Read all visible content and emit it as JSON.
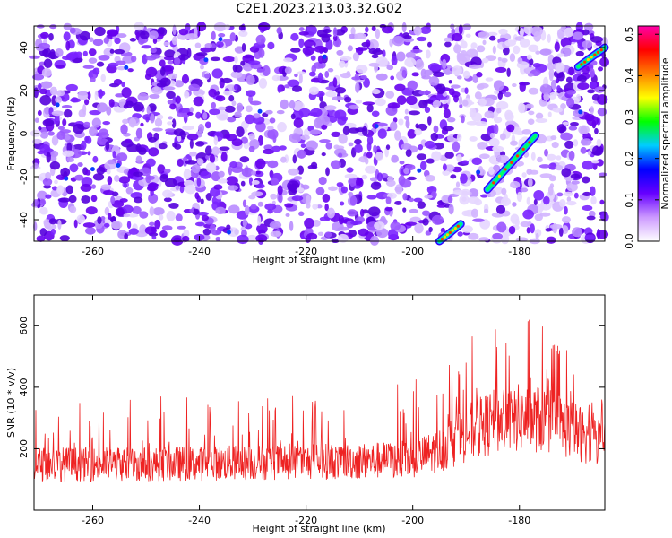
{
  "title": "C2E1.2023.213.03.32.G02",
  "chart_data": [
    {
      "type": "heatmap",
      "xlabel": "Height of straight line (km)",
      "ylabel": "Frequency (Hz)",
      "xlim": [
        -271,
        -164
      ],
      "ylim": [
        -50,
        50
      ],
      "x_ticks": [
        -260,
        -240,
        -220,
        -200,
        -180
      ],
      "y_ticks": [
        -40,
        -20,
        0,
        20,
        40
      ],
      "colorbar": {
        "label": "Normalized spectral amplitude",
        "range": [
          0,
          0.52
        ],
        "ticks": [
          0.0,
          0.1,
          0.2,
          0.3,
          0.4,
          0.5
        ],
        "colors": [
          "#ffffff",
          "#cc99ff",
          "#6600ff",
          "#0000ff",
          "#00ccff",
          "#00ff00",
          "#ffff00",
          "#ff8000",
          "#ff0000",
          "#ff00aa"
        ]
      },
      "features": [
        {
          "name": "",
          "x": [
            -195,
            -191
          ],
          "y": [
            -50,
            -42
          ]
        },
        {
          "name": "",
          "x": [
            -186,
            -177
          ],
          "y": [
            -26,
            -1
          ]
        },
        {
          "name": "",
          "x": [
            -169,
            -164
          ],
          "y": [
            31,
            40
          ]
        }
      ]
    },
    {
      "type": "line",
      "xlabel": "Height of straight line (km)",
      "ylabel": "SNR (10 * v/v)",
      "xlim": [
        -271,
        -164
      ],
      "ylim": [
        0,
        700
      ],
      "x_ticks": [
        -260,
        -240,
        -220,
        -200,
        -180
      ],
      "y_ticks": [
        200,
        400,
        600
      ],
      "color": "#ee2222",
      "profile": {
        "x": [
          -271,
          -250,
          -230,
          -210,
          -200,
          -195,
          -190,
          -185,
          -180,
          -175,
          -170,
          -166,
          -164
        ],
        "baseline": [
          150,
          150,
          155,
          160,
          165,
          195,
          250,
          285,
          300,
          295,
          260,
          230,
          230
        ],
        "peak": [
          330,
          380,
          380,
          400,
          420,
          470,
          560,
          600,
          640,
          600,
          520,
          430,
          420
        ]
      }
    }
  ]
}
